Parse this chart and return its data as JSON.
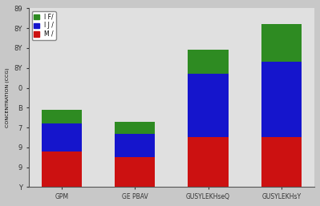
{
  "categories": [
    "GPM",
    "GE PBAV",
    "GUSYLEKHseQ",
    "GUSYLEKHsY"
  ],
  "red_values": [
    1.8,
    1.5,
    2.5,
    2.5
  ],
  "blue_values": [
    1.4,
    1.2,
    3.2,
    3.8
  ],
  "green_values": [
    0.7,
    0.6,
    1.2,
    1.9
  ],
  "green_color": "#2e8b22",
  "blue_color": "#1515cc",
  "red_color": "#cc1111",
  "legend_green": "I F/",
  "legend_blue": "I J /",
  "legend_red": "M /",
  "ylabel": "CONCENTRATION (CCG)",
  "ylim_max": 9,
  "bar_width": 0.55,
  "fig_facecolor": "#c8c8c8",
  "ax_facecolor": "#e0e0e0",
  "spine_color": "#555555"
}
